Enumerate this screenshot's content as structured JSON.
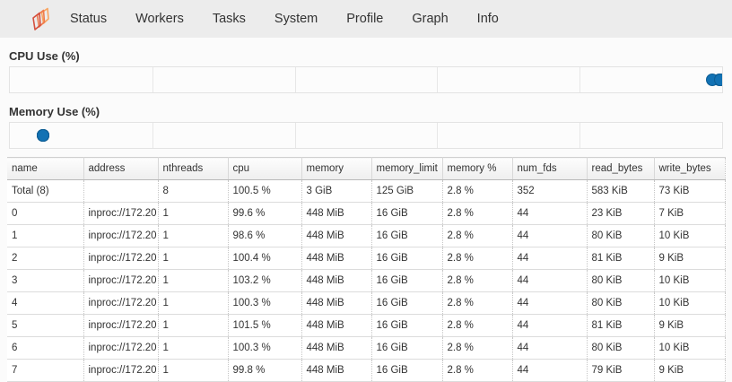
{
  "navbar": {
    "logo_name": "dask-logo",
    "items": [
      {
        "label": "Status"
      },
      {
        "label": "Workers"
      },
      {
        "label": "Tasks"
      },
      {
        "label": "System"
      },
      {
        "label": "Profile"
      },
      {
        "label": "Graph"
      },
      {
        "label": "Info"
      }
    ]
  },
  "sections": [
    {
      "title": "CPU Use (%)"
    },
    {
      "title": "Memory Use (%)"
    }
  ],
  "chart_data": [
    {
      "type": "scatter",
      "title": "CPU Use (%)",
      "values": [
        99.6,
        98.6,
        100.4,
        103.2,
        100.3,
        101.5,
        100.3,
        99.8
      ],
      "xlim": [
        0,
        100
      ],
      "grid": "vertical, 5 divisions",
      "legend_position": "none",
      "note": "one dot per worker; values above 100 clipped at right edge"
    },
    {
      "type": "scatter",
      "title": "Memory Use (%)",
      "values": [
        2.8,
        2.8,
        2.8,
        2.8,
        2.8,
        2.8,
        2.8,
        2.8
      ],
      "xlim": [
        0,
        60
      ],
      "grid": "vertical, 5 divisions",
      "legend_position": "none",
      "note": "all worker dots overlap near left edge"
    }
  ],
  "table": {
    "columns": [
      "name",
      "address",
      "nthreads",
      "cpu",
      "memory",
      "memory_limit",
      "memory %",
      "num_fds",
      "read_bytes",
      "write_bytes"
    ],
    "rows": [
      [
        "Total (8)",
        "",
        "8",
        "100.5 %",
        "3 GiB",
        "125 GiB",
        "2.8 %",
        "352",
        "583 KiB",
        "73 KiB"
      ],
      [
        "0",
        "inproc://172.20",
        "1",
        "99.6 %",
        "448 MiB",
        "16 GiB",
        "2.8 %",
        "44",
        "23 KiB",
        "7 KiB"
      ],
      [
        "1",
        "inproc://172.20",
        "1",
        "98.6 %",
        "448 MiB",
        "16 GiB",
        "2.8 %",
        "44",
        "80 KiB",
        "10 KiB"
      ],
      [
        "2",
        "inproc://172.20",
        "1",
        "100.4 %",
        "448 MiB",
        "16 GiB",
        "2.8 %",
        "44",
        "81 KiB",
        "9 KiB"
      ],
      [
        "3",
        "inproc://172.20",
        "1",
        "103.2 %",
        "448 MiB",
        "16 GiB",
        "2.8 %",
        "44",
        "80 KiB",
        "10 KiB"
      ],
      [
        "4",
        "inproc://172.20",
        "1",
        "100.3 %",
        "448 MiB",
        "16 GiB",
        "2.8 %",
        "44",
        "80 KiB",
        "10 KiB"
      ],
      [
        "5",
        "inproc://172.20",
        "1",
        "101.5 %",
        "448 MiB",
        "16 GiB",
        "2.8 %",
        "44",
        "81 KiB",
        "9 KiB"
      ],
      [
        "6",
        "inproc://172.20",
        "1",
        "100.3 %",
        "448 MiB",
        "16 GiB",
        "2.8 %",
        "44",
        "80 KiB",
        "10 KiB"
      ],
      [
        "7",
        "inproc://172.20",
        "1",
        "99.8 %",
        "448 MiB",
        "16 GiB",
        "2.8 %",
        "44",
        "79 KiB",
        "9 KiB"
      ]
    ]
  },
  "colors": {
    "point_fill": "#1272b4",
    "point_stroke": "#0d5d94",
    "navbar_bg": "#ececec",
    "logo_red": "#d4503f",
    "logo_orange": "#ef7a4c",
    "logo_light": "#f9a45f"
  }
}
